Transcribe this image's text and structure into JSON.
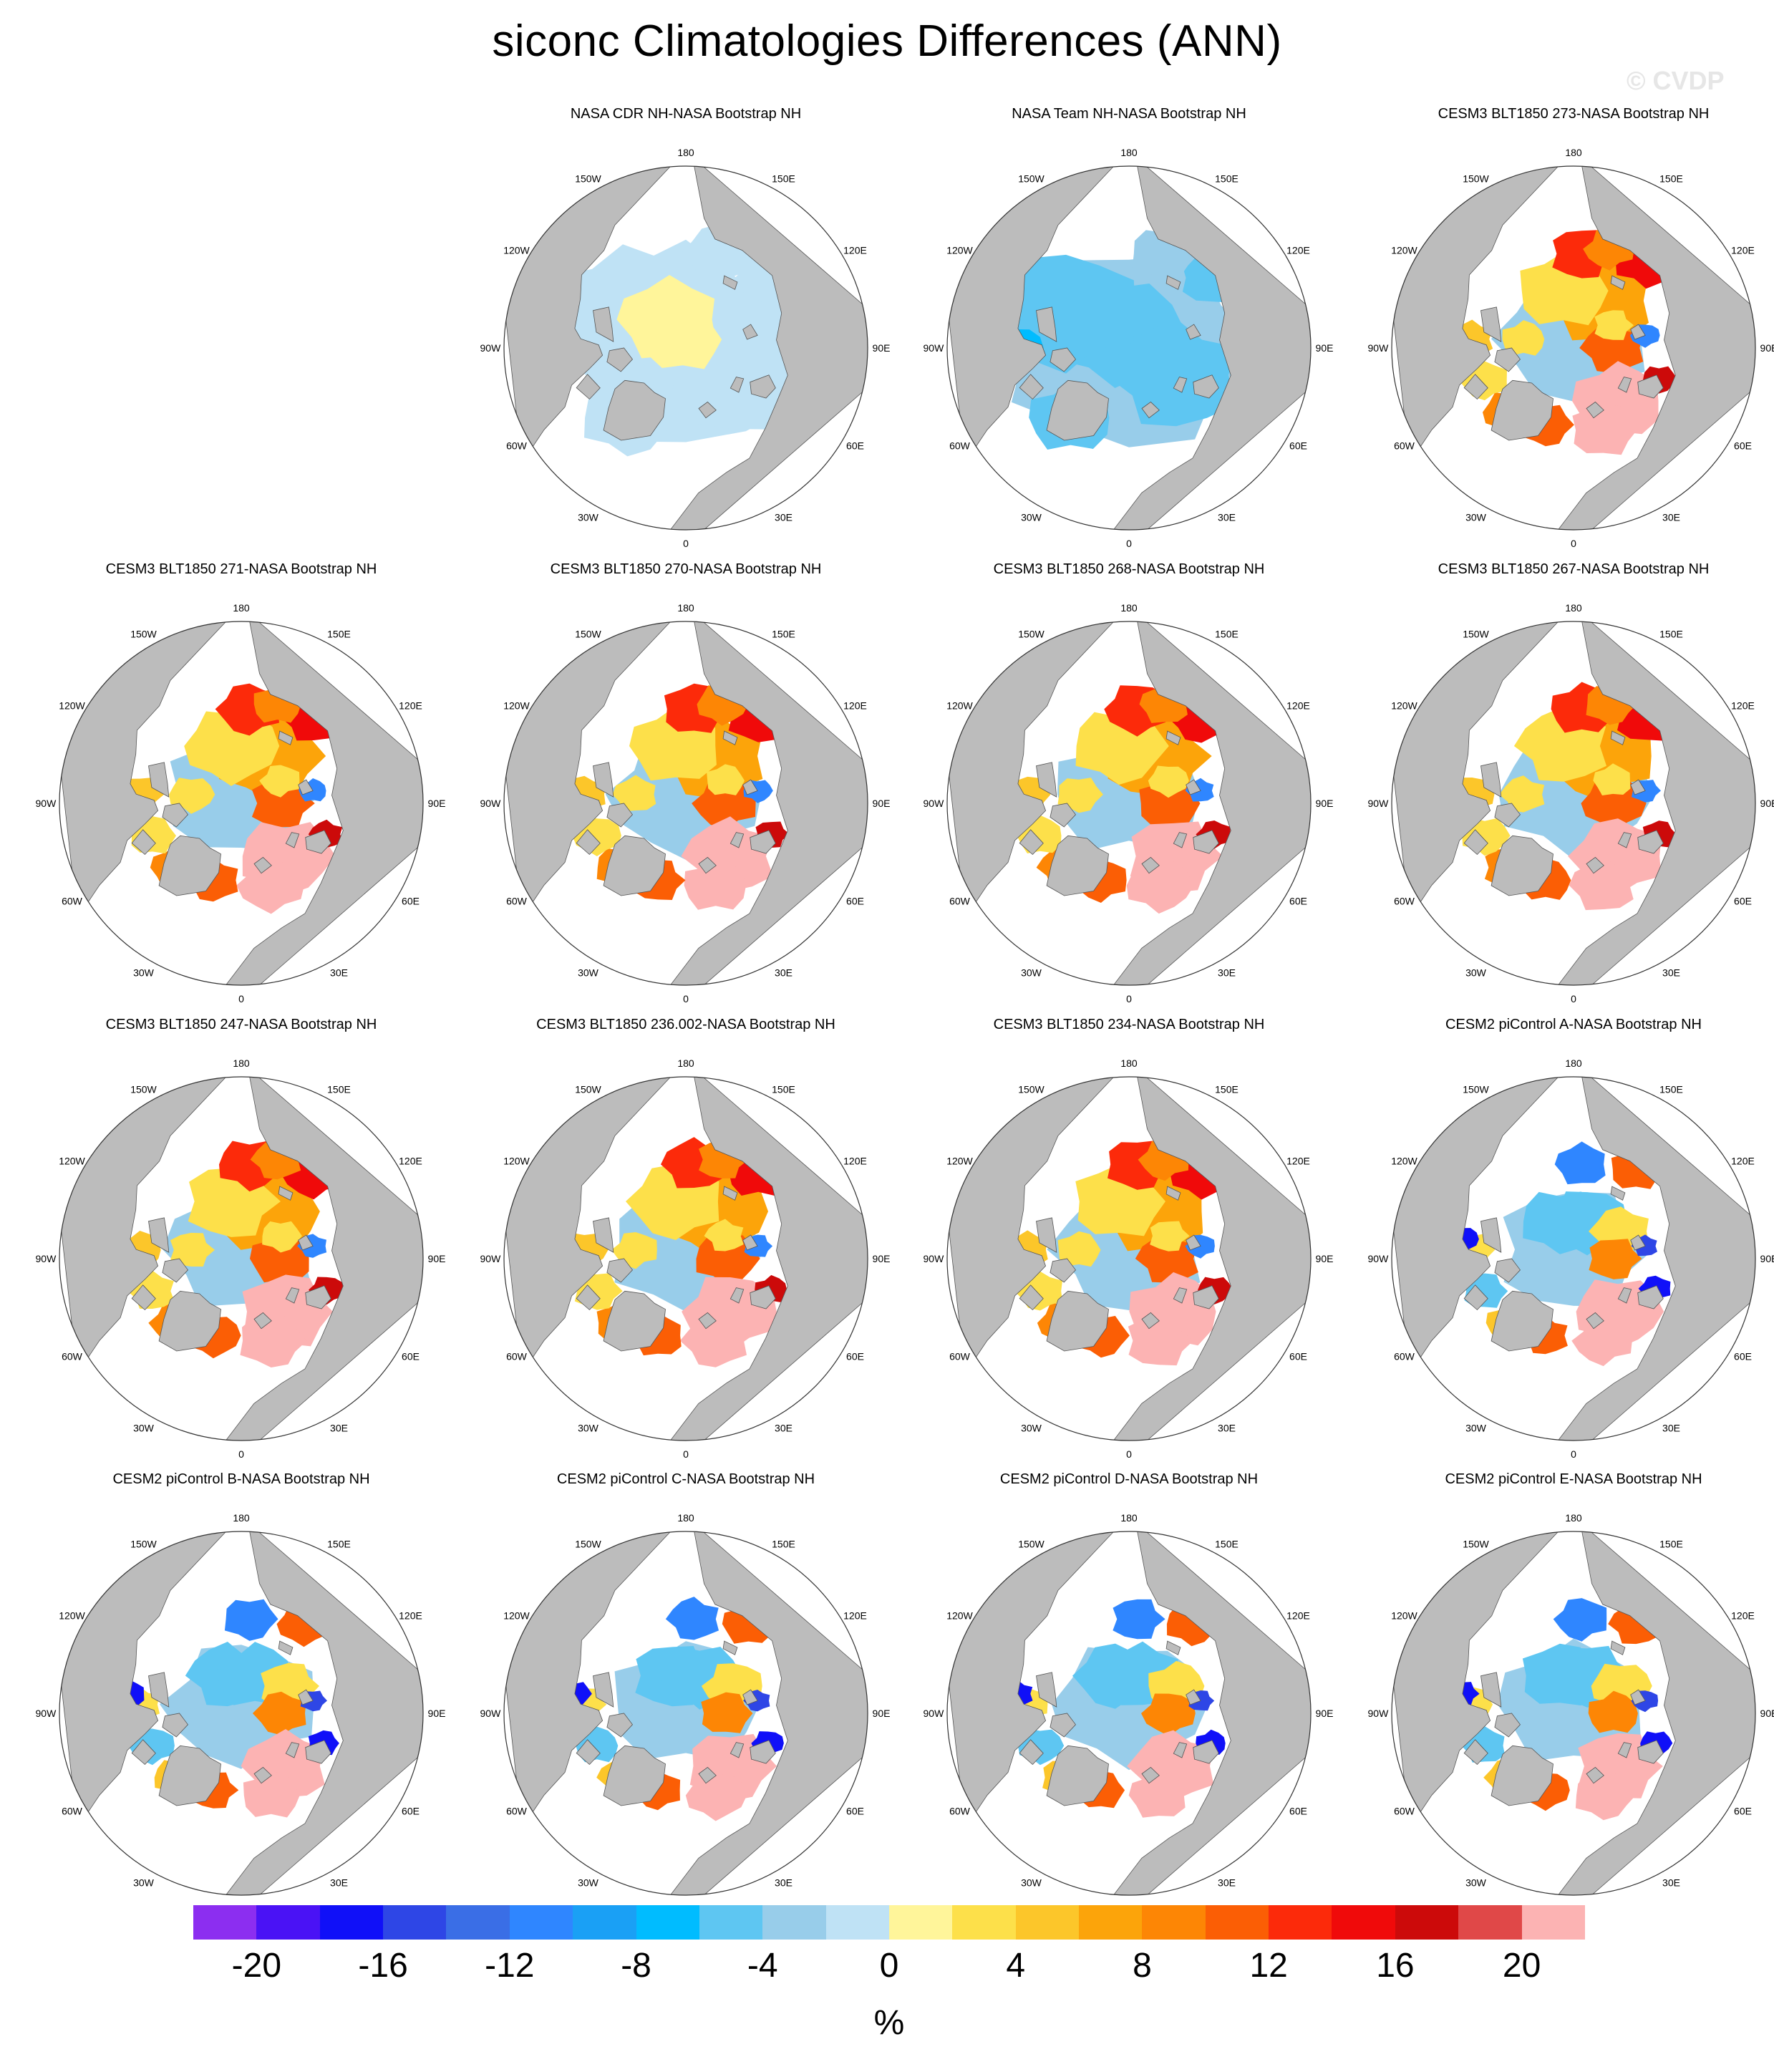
{
  "title": "siconc Climatologies Differences (ANN)",
  "watermark": "© CVDP",
  "map_style": {
    "land_color": "#bcbcbc",
    "ocean_color": "#ffffff",
    "outline_color": "#555555"
  },
  "lon_labels": [
    "180",
    "150E",
    "120E",
    "90E",
    "60E",
    "30E",
    "0",
    "30W",
    "60W",
    "90W",
    "120W",
    "150W"
  ],
  "panels": [
    {
      "title": "NASA CDR NH-NASA Bootstrap NH",
      "scheme": "cdr"
    },
    {
      "title": "NASA Team NH-NASA Bootstrap NH",
      "scheme": "team"
    },
    {
      "title": "CESM3 BLT1850 273-NASA Bootstrap NH",
      "scheme": "cesm3"
    },
    {
      "title": "CESM3 BLT1850 271-NASA Bootstrap NH",
      "scheme": "cesm3"
    },
    {
      "title": "CESM3 BLT1850 270-NASA Bootstrap NH",
      "scheme": "cesm3"
    },
    {
      "title": "CESM3 BLT1850 268-NASA Bootstrap NH",
      "scheme": "cesm3"
    },
    {
      "title": "CESM3 BLT1850 267-NASA Bootstrap NH",
      "scheme": "cesm3"
    },
    {
      "title": "CESM3 BLT1850 247-NASA Bootstrap NH",
      "scheme": "cesm3"
    },
    {
      "title": "CESM3 BLT1850 236.002-NASA Bootstrap NH",
      "scheme": "cesm3"
    },
    {
      "title": "CESM3 BLT1850 234-NASA Bootstrap NH",
      "scheme": "cesm3"
    },
    {
      "title": "CESM2 piControl A-NASA Bootstrap NH",
      "scheme": "cesm2"
    },
    {
      "title": "CESM2 piControl B-NASA Bootstrap NH",
      "scheme": "cesm2"
    },
    {
      "title": "CESM2 piControl C-NASA Bootstrap NH",
      "scheme": "cesm2"
    },
    {
      "title": "CESM2 piControl D-NASA Bootstrap NH",
      "scheme": "cesm2"
    },
    {
      "title": "CESM2 piControl E-NASA Bootstrap NH",
      "scheme": "cesm2"
    }
  ],
  "colorbar": {
    "units": "%",
    "ticks": [
      "-20",
      "-16",
      "-12",
      "-8",
      "-4",
      "0",
      "4",
      "8",
      "12",
      "16",
      "20"
    ],
    "colors": [
      "#8c2ef0",
      "#4a12f5",
      "#1010f8",
      "#2e46e6",
      "#3a6ee6",
      "#2f86ff",
      "#1aa0f5",
      "#00bcff",
      "#5ec6f2",
      "#98cdea",
      "#bfe2f5",
      "#fff59a",
      "#fde04a",
      "#fcc62a",
      "#fca40a",
      "#fd8605",
      "#fb5e05",
      "#fc2a0a",
      "#f00a0a",
      "#cc0a0a",
      "#e04848",
      "#fcb3b3"
    ]
  }
}
